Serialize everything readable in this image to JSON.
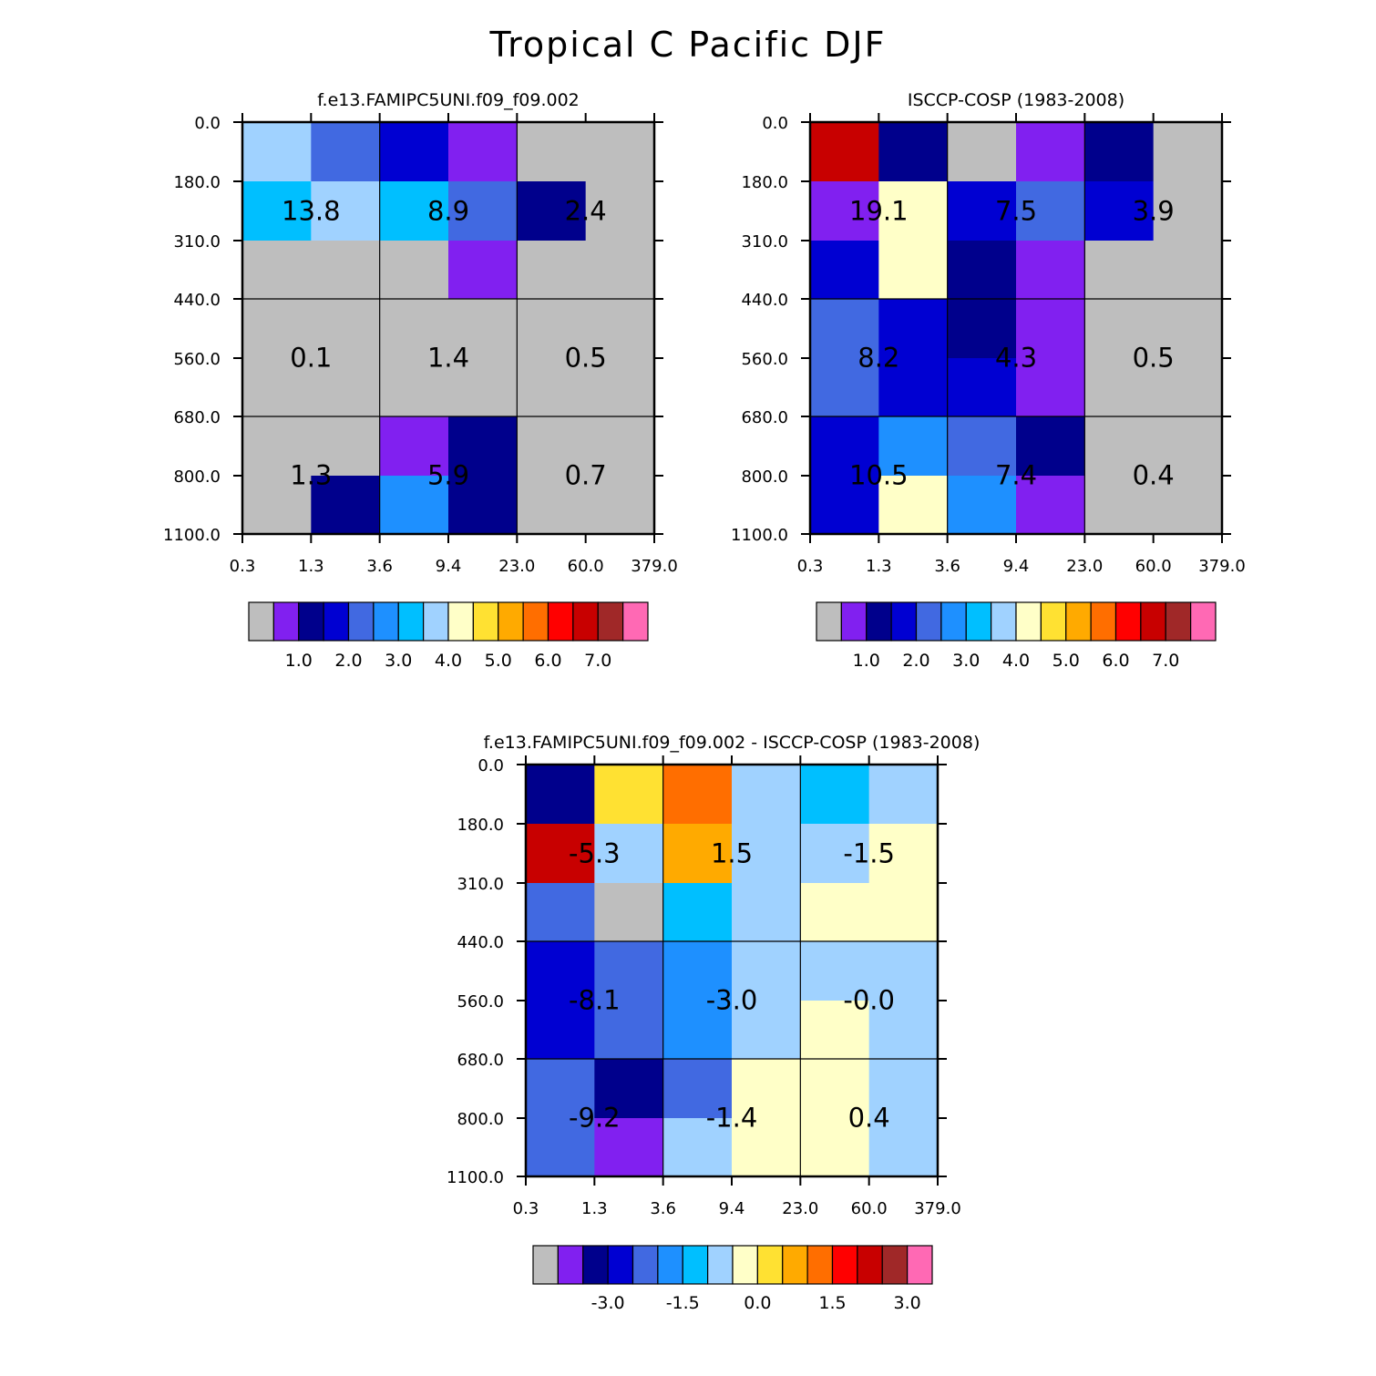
{
  "chart_data": {
    "title": "Tropical C Pacific DJF",
    "type": "heatmap",
    "x_ticks": [
      "0.3",
      "1.3",
      "3.6",
      "9.4",
      "23.0",
      "60.0",
      "379.0"
    ],
    "y_ticks": [
      "0.0",
      "180.0",
      "310.0",
      "440.0",
      "560.0",
      "680.0",
      "800.0",
      "1100.0"
    ],
    "x_description": "optical depth bins (6 columns)",
    "y_description": "cloud top pressure bins in hPa (7 rows, top to bottom)",
    "palette": [
      "#bebebe",
      "#8120f0",
      "#00008c",
      "#0000d2",
      "#4169e1",
      "#1e90ff",
      "#00bfff",
      "#a0d2ff",
      "#ffffc8",
      "#ffe132",
      "#ffaa00",
      "#ff6e00",
      "#ff0000",
      "#c80000",
      "#a02828",
      "#ff69b4"
    ],
    "panels": [
      {
        "name": "model",
        "title": "f.e13.FAMIPC5UNI.f09_f09.002",
        "cells": [
          [
            7,
            4,
            3,
            1,
            0,
            0
          ],
          [
            6,
            7,
            6,
            4,
            2,
            0
          ],
          [
            0,
            0,
            0,
            1,
            0,
            0
          ],
          [
            0,
            0,
            0,
            0,
            0,
            0
          ],
          [
            0,
            0,
            0,
            0,
            0,
            0
          ],
          [
            0,
            0,
            1,
            2,
            0,
            0
          ],
          [
            0,
            2,
            5,
            2,
            0,
            0
          ]
        ],
        "totals": [
          "13.8",
          "8.9",
          "2.4",
          "0.1",
          "1.4",
          "0.5",
          "1.3",
          "5.9",
          "0.7"
        ],
        "colorbar_labels": [
          "1.0",
          "2.0",
          "3.0",
          "4.0",
          "5.0",
          "6.0",
          "7.0"
        ]
      },
      {
        "name": "obs",
        "title": "ISCCP-COSP (1983-2008)",
        "cells": [
          [
            13,
            2,
            0,
            1,
            2,
            0
          ],
          [
            1,
            8,
            3,
            4,
            3,
            0
          ],
          [
            3,
            8,
            2,
            1,
            0,
            0
          ],
          [
            4,
            3,
            2,
            1,
            0,
            0
          ],
          [
            4,
            3,
            3,
            1,
            0,
            0
          ],
          [
            3,
            5,
            4,
            2,
            0,
            0
          ],
          [
            3,
            8,
            5,
            1,
            0,
            0
          ]
        ],
        "totals": [
          "19.1",
          "7.5",
          "3.9",
          "8.2",
          "4.3",
          "0.5",
          "10.5",
          "7.4",
          "0.4"
        ],
        "colorbar_labels": [
          "1.0",
          "2.0",
          "3.0",
          "4.0",
          "5.0",
          "6.0",
          "7.0"
        ]
      },
      {
        "name": "diff",
        "title": "f.e13.FAMIPC5UNI.f09_f09.002 - ISCCP-COSP (1983-2008)",
        "cells": [
          [
            2,
            9,
            11,
            7,
            6,
            7
          ],
          [
            13,
            7,
            10,
            7,
            7,
            8
          ],
          [
            4,
            0,
            6,
            7,
            8,
            8
          ],
          [
            3,
            4,
            5,
            7,
            7,
            7
          ],
          [
            3,
            4,
            5,
            7,
            8,
            7
          ],
          [
            4,
            2,
            4,
            8,
            8,
            7
          ],
          [
            4,
            1,
            7,
            8,
            8,
            7
          ]
        ],
        "totals": [
          "-5.3",
          "1.5",
          "-1.5",
          "-8.1",
          "-3.0",
          "-0.0",
          "-9.2",
          "-1.4",
          "0.4"
        ],
        "colorbar_labels": [
          "-3.0",
          "-1.5",
          "0.0",
          "1.5",
          "3.0"
        ]
      }
    ]
  }
}
